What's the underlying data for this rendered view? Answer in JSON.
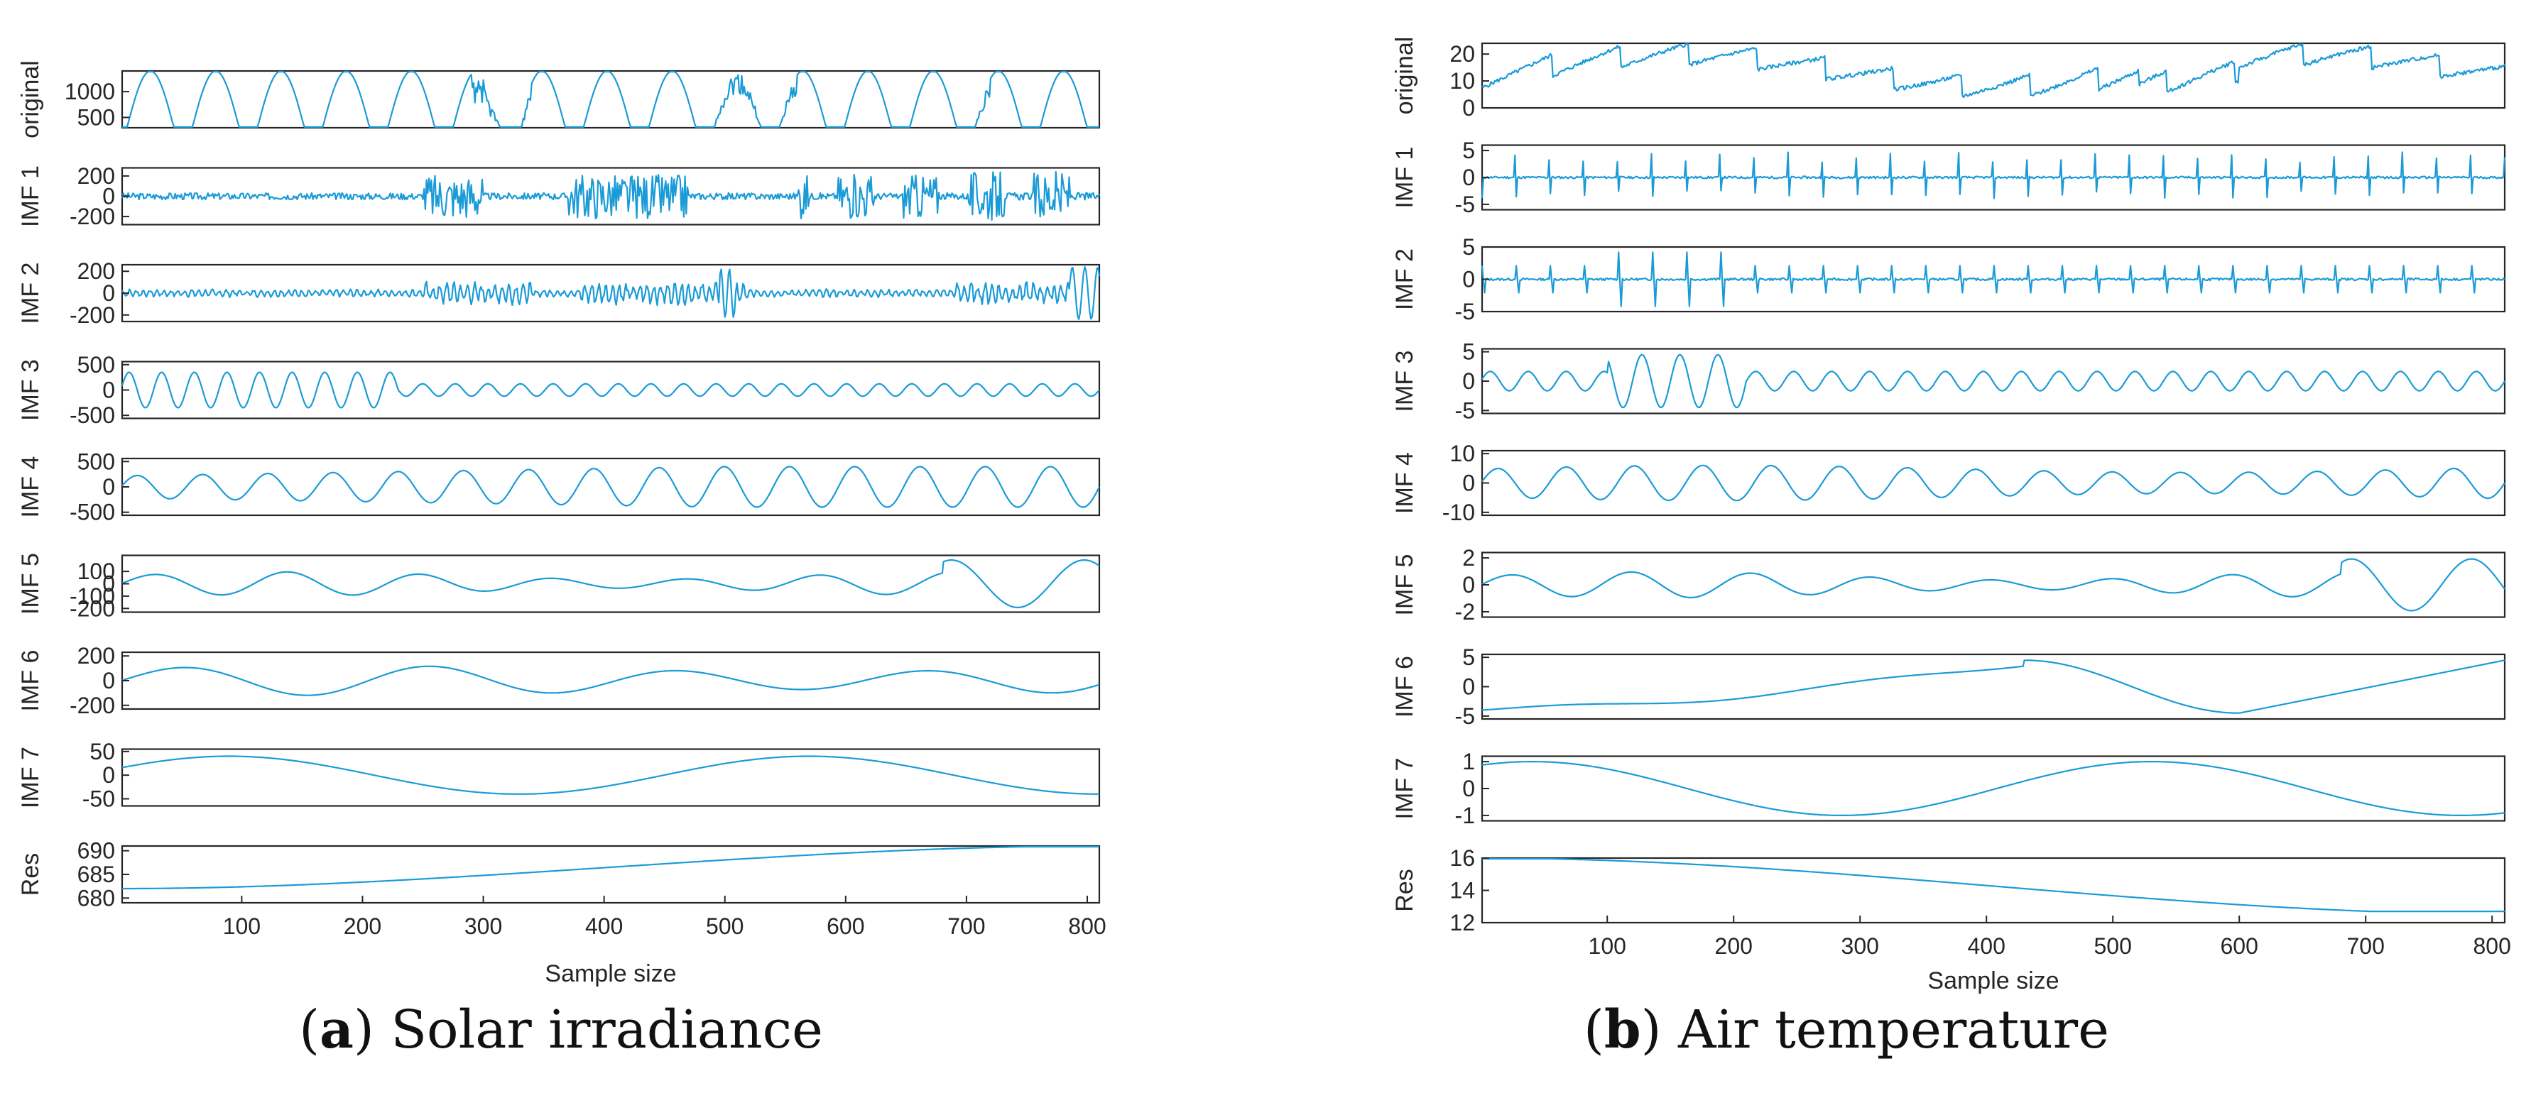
{
  "accent_color": "#1a9bd7",
  "axis_color": "#262626",
  "panels": [
    {
      "caption_letter": "a",
      "caption_text": "Solar irradiance",
      "xlabel": "Sample size",
      "x_ticks": [
        "100",
        "200",
        "300",
        "400",
        "500",
        "600",
        "700",
        "800"
      ],
      "x_tick_values": [
        100,
        200,
        300,
        400,
        500,
        600,
        700,
        800
      ]
    },
    {
      "caption_letter": "b",
      "caption_text": "Air temperature",
      "xlabel": "Sample size",
      "x_ticks": [
        "100",
        "200",
        "300",
        "400",
        "500",
        "600",
        "700",
        "800"
      ],
      "x_tick_values": [
        100,
        200,
        300,
        400,
        500,
        600,
        700,
        800
      ]
    }
  ],
  "chart_data": [
    {
      "type": "line",
      "title": "(a) Solar irradiance",
      "xlabel": "Sample size",
      "xlim": [
        1,
        810
      ],
      "subplots": [
        {
          "ylabel": "original",
          "ylim": [
            300,
            1400
          ],
          "ytick_values": [
            500,
            1000
          ],
          "ytick_labels": [
            "500",
            "1000"
          ],
          "kind": "daily",
          "period": 54,
          "x0": 5,
          "amp": 1100,
          "base": 300,
          "noise": 0.35
        },
        {
          "ylabel": "IMF 1",
          "ylim": [
            -280,
            280
          ],
          "ytick_values": [
            200,
            0,
            -200
          ],
          "ytick_labels": [
            "200",
            "0",
            "-200"
          ],
          "kind": "noise",
          "amp": 220,
          "seed": 3
        },
        {
          "ylabel": "IMF 2",
          "ylim": [
            -260,
            260
          ],
          "ytick_values": [
            200,
            0,
            -200
          ],
          "ytick_labels": [
            "200",
            "0",
            "-200"
          ],
          "kind": "noise2",
          "amp": 160,
          "seed": 7
        },
        {
          "ylabel": "IMF 3",
          "ylim": [
            -560,
            560
          ],
          "ytick_values": [
            500,
            0,
            -500
          ],
          "ytick_labels": [
            "500",
            "0",
            "-500"
          ],
          "kind": "osc",
          "period": 27,
          "amp": 350,
          "amp_trend": "decay"
        },
        {
          "ylabel": "IMF 4",
          "ylim": [
            -560,
            560
          ],
          "ytick_values": [
            500,
            0,
            -500
          ],
          "ytick_labels": [
            "500",
            "0",
            "-500"
          ],
          "kind": "osc",
          "period": 54,
          "amp": 400,
          "amp_trend": "grow"
        },
        {
          "ylabel": "IMF 5",
          "ylim": [
            -230,
            230
          ],
          "ytick_values": [
            100,
            0,
            -100,
            -200
          ],
          "ytick_labels": [
            "100",
            "0",
            "-100",
            "-200"
          ],
          "kind": "osc",
          "period": 110,
          "amp": 120,
          "amp_trend": "late"
        },
        {
          "ylabel": "IMF 6",
          "ylim": [
            -230,
            230
          ],
          "ytick_values": [
            200,
            0,
            -200
          ],
          "ytick_labels": [
            "200",
            "0",
            "-200"
          ],
          "kind": "osc",
          "period": 205,
          "amp": 120,
          "amp_trend": "flat"
        },
        {
          "ylabel": "IMF 7",
          "ylim": [
            -65,
            55
          ],
          "ytick_values": [
            50,
            0,
            -50
          ],
          "ytick_labels": [
            "50",
            "0",
            "-50"
          ],
          "kind": "wave",
          "period": 480,
          "phase": 0.4,
          "amp": 40,
          "offset": 0
        },
        {
          "ylabel": "Res",
          "ylim": [
            679,
            691
          ],
          "ytick_values": [
            690,
            685,
            680
          ],
          "ytick_labels": [
            "690",
            "685",
            "680"
          ],
          "kind": "res",
          "start": 682,
          "end": 691
        }
      ]
    },
    {
      "type": "line",
      "title": "(b) Air temperature",
      "xlabel": "Sample size",
      "xlim": [
        1,
        810
      ],
      "subplots": [
        {
          "ylabel": "original",
          "ylim": [
            0,
            24
          ],
          "ytick_values": [
            20,
            10,
            0
          ],
          "ytick_labels": [
            "20",
            "10",
            "0"
          ],
          "kind": "sawtooth",
          "period": 54,
          "base": 10,
          "amp": 8,
          "seed": 5
        },
        {
          "ylabel": "IMF 1",
          "ylim": [
            -6,
            6
          ],
          "ytick_values": [
            5,
            0,
            -5
          ],
          "ytick_labels": [
            "5",
            "0",
            "-5"
          ],
          "kind": "spikes",
          "period": 27,
          "amp": 4,
          "seed": 11
        },
        {
          "ylabel": "IMF 2",
          "ylim": [
            -5,
            5
          ],
          "ytick_values": [
            5,
            0,
            -5
          ],
          "ytick_labels": [
            "5",
            "0",
            "-5"
          ],
          "kind": "spikes2",
          "period": 27,
          "amp": 3.5,
          "seed": 13
        },
        {
          "ylabel": "IMF 3",
          "ylim": [
            -5.5,
            5.5
          ],
          "ytick_values": [
            5,
            0,
            -5
          ],
          "ytick_labels": [
            "5",
            "0",
            "-5"
          ],
          "kind": "osc",
          "period": 30,
          "amp": 3,
          "amp_trend": "early"
        },
        {
          "ylabel": "IMF 4",
          "ylim": [
            -11,
            11
          ],
          "ytick_values": [
            10,
            0,
            -10
          ],
          "ytick_labels": [
            "10",
            "0",
            "-10"
          ],
          "kind": "osc",
          "period": 54,
          "amp": 6,
          "amp_trend": "flat"
        },
        {
          "ylabel": "IMF 5",
          "ylim": [
            -2.4,
            2.4
          ],
          "ytick_values": [
            2,
            0,
            -2
          ],
          "ytick_labels": [
            "2",
            "0",
            "-2"
          ],
          "kind": "osc",
          "period": 95,
          "amp": 1.2,
          "amp_trend": "late"
        },
        {
          "ylabel": "IMF 6",
          "ylim": [
            -5.5,
            5.5
          ],
          "ytick_values": [
            5,
            0,
            -5
          ],
          "ytick_labels": [
            "5",
            "0",
            "-5"
          ],
          "kind": "imf6b"
        },
        {
          "ylabel": "IMF 7",
          "ylim": [
            -1.2,
            1.2
          ],
          "ytick_values": [
            1,
            0,
            -1
          ],
          "ytick_labels": [
            "1",
            "0",
            "-1"
          ],
          "kind": "wave",
          "period": 490,
          "phase": 1.05,
          "amp": 1.0,
          "offset": 0
        },
        {
          "ylabel": "Res",
          "ylim": [
            12,
            16
          ],
          "ytick_values": [
            16,
            14,
            12
          ],
          "ytick_labels": [
            "16",
            "14",
            "12"
          ],
          "kind": "res2",
          "start": 16,
          "end": 12.7
        }
      ]
    }
  ]
}
